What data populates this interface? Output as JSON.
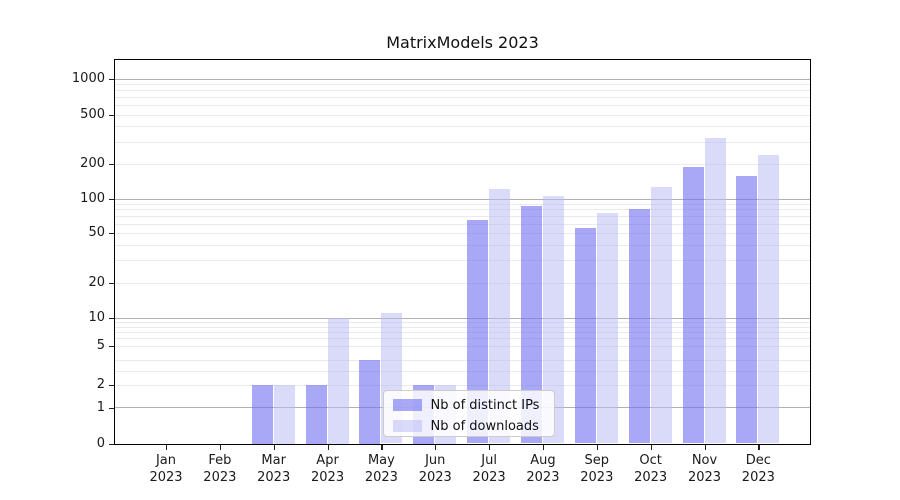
{
  "title": "MatrixModels 2023",
  "chart_data": {
    "type": "bar",
    "title": "MatrixModels 2023",
    "categories": [
      "Jan",
      "Feb",
      "Mar",
      "Apr",
      "May",
      "Jun",
      "Jul",
      "Aug",
      "Sep",
      "Oct",
      "Nov",
      "Dec"
    ],
    "x_year_label": "2023",
    "series": [
      {
        "name": "Nb of distinct IPs",
        "color": "rgba(115,115,242,0.62)",
        "values": [
          0,
          0,
          2,
          2,
          4,
          2,
          65,
          85,
          55,
          80,
          185,
          155
        ]
      },
      {
        "name": "Nb of downloads",
        "color": "rgba(188,188,244,0.55)",
        "values": [
          0,
          0,
          2,
          10,
          11,
          2,
          120,
          105,
          75,
          125,
          320,
          235
        ]
      }
    ],
    "yscale": "symlog",
    "yticks": [
      0,
      1,
      2,
      5,
      10,
      20,
      50,
      100,
      200,
      500,
      1000
    ],
    "ylim": [
      0,
      1440
    ],
    "grid": true,
    "legend_position": "lower-center",
    "colors": {
      "grid_major": "#b0b0b0",
      "grid_minor": "#e9e9ef",
      "spine": "#000000"
    }
  }
}
